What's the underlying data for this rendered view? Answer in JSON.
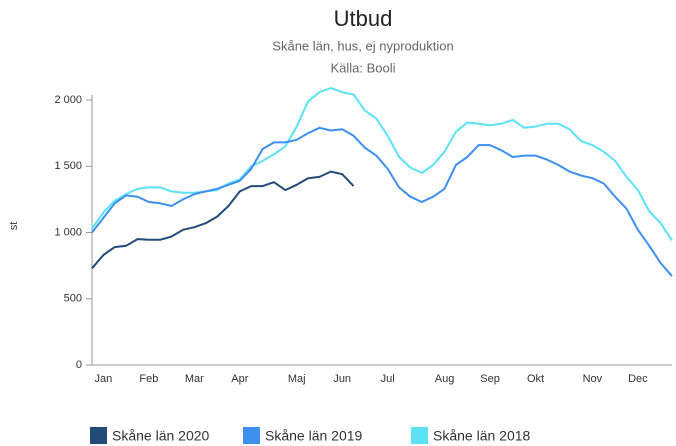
{
  "chart_data": {
    "type": "line",
    "title": "Utbud",
    "subtitle": "Skåne län, hus, ej nyproduktion",
    "caption": "Källa: Booli",
    "ylabel": "st",
    "categories": [
      null,
      "Jan",
      null,
      null,
      null,
      "Feb",
      null,
      null,
      null,
      "Mar",
      null,
      null,
      null,
      "Apr",
      null,
      null,
      null,
      null,
      "Maj",
      null,
      null,
      null,
      "Jun",
      null,
      null,
      null,
      "Jul",
      null,
      null,
      null,
      null,
      "Aug",
      null,
      null,
      null,
      "Sep",
      null,
      null,
      null,
      "Okt",
      null,
      null,
      null,
      null,
      "Nov",
      null,
      null,
      null,
      "Dec",
      null,
      null,
      null
    ],
    "series": [
      {
        "name": "Skåne län 2020",
        "color": "#244a7a",
        "values": [
          730,
          830,
          890,
          900,
          950,
          945,
          945,
          970,
          1020,
          1040,
          1070,
          1120,
          1200,
          1310,
          1350,
          1350,
          1380,
          1320,
          1360,
          1410,
          1420,
          1460,
          1440,
          1350,
          null,
          null,
          null,
          null,
          null,
          null,
          null,
          null,
          null,
          null,
          null,
          null,
          null,
          null,
          null,
          null,
          null,
          null,
          null,
          null,
          null,
          null,
          null,
          null,
          null,
          null,
          null,
          null
        ]
      },
      {
        "name": "Skåne län 2019",
        "color": "#3d8ff0",
        "values": [
          1000,
          1110,
          1220,
          1280,
          1270,
          1230,
          1220,
          1200,
          1250,
          1290,
          1310,
          1330,
          1360,
          1390,
          1480,
          1630,
          1680,
          1680,
          1700,
          1750,
          1790,
          1770,
          1780,
          1730,
          1640,
          1580,
          1480,
          1340,
          1270,
          1230,
          1270,
          1330,
          1510,
          1570,
          1660,
          1660,
          1620,
          1570,
          1580,
          1580,
          1550,
          1510,
          1460,
          1430,
          1410,
          1370,
          1270,
          1180,
          1020,
          900,
          770,
          670
        ]
      },
      {
        "name": "Skåne län 2018",
        "color": "#5ce1f5",
        "values": [
          1030,
          1150,
          1240,
          1290,
          1330,
          1340,
          1340,
          1310,
          1300,
          1300,
          1310,
          1320,
          1370,
          1400,
          1500,
          1540,
          1590,
          1650,
          1800,
          1990,
          2060,
          2090,
          2060,
          2040,
          1920,
          1860,
          1730,
          1570,
          1490,
          1450,
          1510,
          1610,
          1760,
          1830,
          1820,
          1810,
          1820,
          1850,
          1790,
          1800,
          1820,
          1820,
          1780,
          1690,
          1660,
          1610,
          1540,
          1420,
          1320,
          1160,
          1070,
          940
        ]
      }
    ],
    "ylim": [
      0,
      2000
    ],
    "yticks": [
      0,
      500,
      {
        "value": 1000,
        "label": "1 000"
      },
      {
        "value": 1500,
        "label": "1 500"
      },
      {
        "value": 2000,
        "label": "2 000"
      }
    ],
    "grid": false,
    "legend": "bottom"
  }
}
